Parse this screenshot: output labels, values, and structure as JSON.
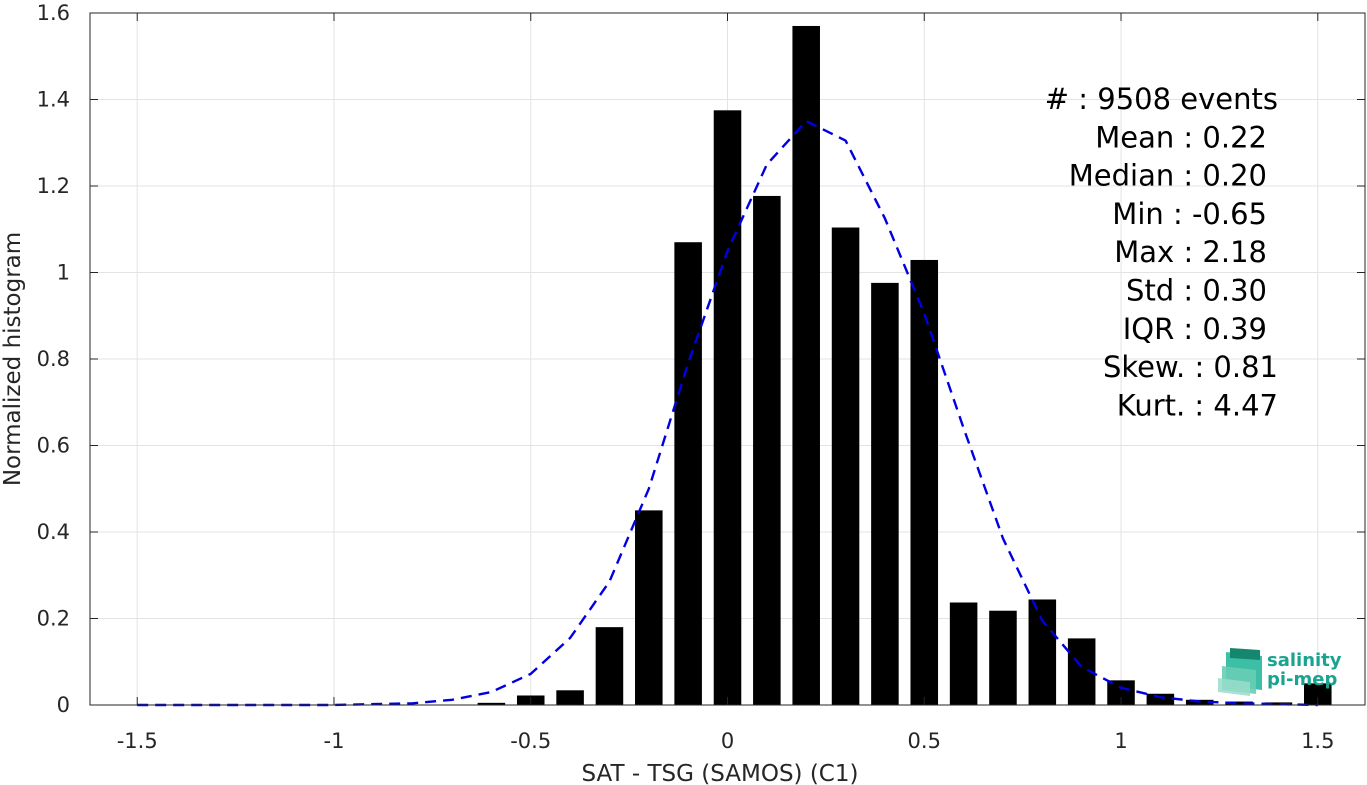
{
  "chart_data": {
    "type": "bar",
    "xlabel": "SAT - TSG (SAMOS) (C1)",
    "ylabel": "Normalized histogram",
    "xlim": [
      -1.62,
      1.62
    ],
    "ylim": [
      0,
      1.6
    ],
    "xticks": [
      -1.5,
      -1,
      -0.5,
      0,
      0.5,
      1,
      1.5
    ],
    "xtick_labels": [
      "-1.5",
      "-1",
      "-0.5",
      "0",
      "0.5",
      "1",
      "1.5"
    ],
    "yticks": [
      0,
      0.2,
      0.4,
      0.6,
      0.8,
      1,
      1.2,
      1.4,
      1.6
    ],
    "ytick_labels": [
      "0",
      "0.2",
      "0.4",
      "0.6",
      "0.8",
      "1",
      "1.2",
      "1.4",
      "1.6"
    ],
    "grid": true,
    "bar_width": 0.07,
    "bars": {
      "x": [
        -0.6,
        -0.5,
        -0.4,
        -0.3,
        -0.2,
        -0.1,
        0.0,
        0.1,
        0.2,
        0.3,
        0.4,
        0.5,
        0.6,
        0.7,
        0.8,
        0.9,
        1.0,
        1.1,
        1.2,
        1.3,
        1.4,
        1.5
      ],
      "values": [
        0.005,
        0.022,
        0.034,
        0.18,
        0.45,
        1.07,
        1.375,
        1.177,
        1.57,
        1.104,
        0.976,
        1.029,
        0.237,
        0.218,
        0.244,
        0.154,
        0.057,
        0.026,
        0.012,
        0.008,
        0.006,
        0.05
      ],
      "color": "#000000"
    },
    "fit_curve": {
      "style": "dashed",
      "color": "#0000e0",
      "x": [
        -1.5,
        -1.4,
        -1.3,
        -1.2,
        -1.1,
        -1.0,
        -0.9,
        -0.8,
        -0.7,
        -0.6,
        -0.5,
        -0.4,
        -0.3,
        -0.2,
        -0.1,
        0.0,
        0.1,
        0.2,
        0.3,
        0.4,
        0.5,
        0.6,
        0.7,
        0.8,
        0.9,
        1.0,
        1.1,
        1.2,
        1.3,
        1.4,
        1.5
      ],
      "y": [
        0.0,
        0.0,
        0.0,
        0.0,
        0.0,
        0.0,
        0.002,
        0.004,
        0.012,
        0.03,
        0.072,
        0.155,
        0.285,
        0.5,
        0.79,
        1.05,
        1.25,
        1.35,
        1.305,
        1.125,
        0.905,
        0.64,
        0.385,
        0.195,
        0.088,
        0.04,
        0.018,
        0.008,
        0.004,
        0.002,
        0.0
      ]
    },
    "stats": [
      {
        "label": "#  : 9508 events"
      },
      {
        "label": "Mean : 0.22"
      },
      {
        "label": "Median : 0.20"
      },
      {
        "label": "Min : -0.65"
      },
      {
        "label": "Max : 2.18"
      },
      {
        "label": "Std : 0.30"
      },
      {
        "label": "IQR : 0.39"
      },
      {
        "label": "Skew. : 0.81"
      },
      {
        "label": "Kurt. : 4.47"
      }
    ]
  },
  "logo": {
    "line1": "salinity",
    "line2": "pi-mep"
  }
}
